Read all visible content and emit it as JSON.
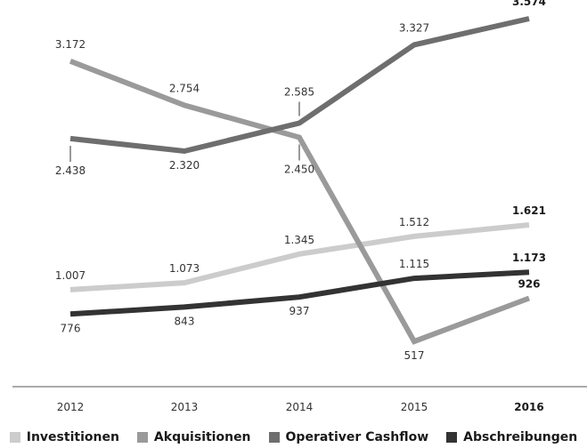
{
  "chart_data": {
    "type": "line",
    "categories": [
      "2012",
      "2013",
      "2014",
      "2015",
      "2016"
    ],
    "highlight_category": "2016",
    "ylim": [
      0,
      3700
    ],
    "grid": false,
    "legend_placement": "bottom",
    "series": [
      {
        "key": "investitionen",
        "name": "Investitionen",
        "color": "#cccccc",
        "values": [
          1007,
          1073,
          1345,
          1512,
          1621
        ],
        "labels": [
          "1.007",
          "1.073",
          "1.345",
          "1.512",
          "1.621"
        ],
        "label_pos": [
          "above",
          "above",
          "above",
          "above",
          "above"
        ]
      },
      {
        "key": "akquisitionen",
        "name": "Akquisitionen",
        "color": "#9a9a9a",
        "values": [
          3172,
          2754,
          2450,
          517,
          926
        ],
        "labels": [
          "3.172",
          "2.754",
          "2.450",
          "517",
          "926"
        ],
        "label_pos": [
          "above-far",
          "above-far",
          "below-leader",
          "below",
          "above"
        ]
      },
      {
        "key": "cashflow",
        "name": "Operativer Cashflow",
        "color": "#6e6e6e",
        "values": [
          2438,
          2320,
          2585,
          3327,
          3574
        ],
        "labels": [
          "2.438",
          "2.320",
          "2.585",
          "3.327",
          "3.574"
        ],
        "label_pos": [
          "below-leader",
          "below",
          "above-leader",
          "above-far",
          "above-far"
        ]
      },
      {
        "key": "abschreibungen",
        "name": "Abschreibungen",
        "color": "#333333",
        "values": [
          776,
          843,
          937,
          1115,
          1173
        ],
        "labels": [
          "776",
          "843",
          "937",
          "1.115",
          "1.173"
        ],
        "label_pos": [
          "below",
          "below",
          "below",
          "above",
          "above"
        ]
      }
    ]
  }
}
